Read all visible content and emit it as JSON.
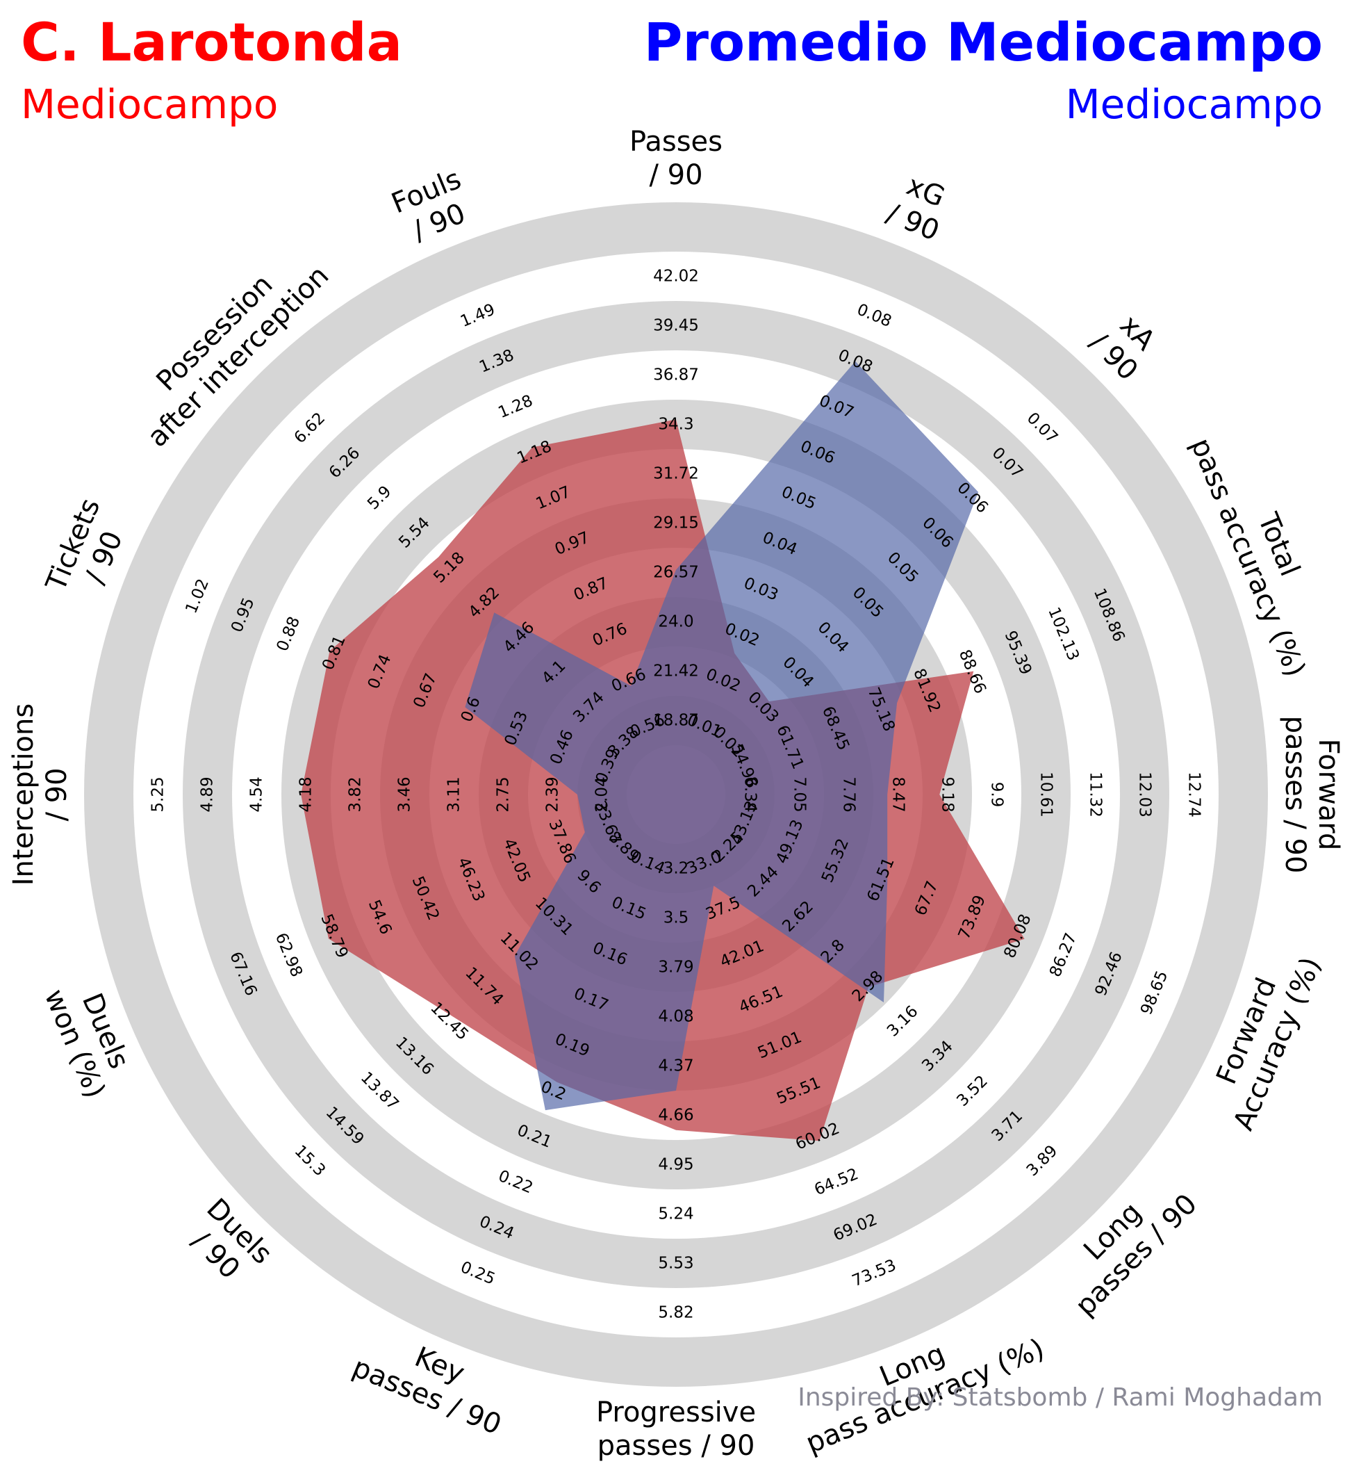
{
  "header": {
    "player_name": "C. Larotonda",
    "player_position": "Mediocampo",
    "comparison_name": "Promedio Mediocampo",
    "comparison_position": "Mediocampo",
    "credit": "Inspired By: Statsbomb / Rami Moghadam"
  },
  "colors": {
    "player_text": "#ff0000",
    "comparison_text": "#0000ff",
    "player_fill": "#c0474d",
    "comparison_fill": "#5366a6",
    "ring": "#d6d6d6",
    "credit": "#8a8a96"
  },
  "chart_data": {
    "type": "radar",
    "title": "",
    "ring_count": 12,
    "parameters": [
      {
        "label": [
          "Passes",
          "/ 90"
        ],
        "min": 16.29,
        "max": 42.02,
        "ticks": [
          "",
          "18.87",
          "21.42",
          "24.0",
          "26.57",
          "29.15",
          "31.72",
          "34.3",
          "36.87",
          "39.45",
          "42.02"
        ]
      },
      {
        "label": [
          "xG",
          "/ 90"
        ],
        "min": 0.0,
        "max": 0.08,
        "ticks": [
          "",
          "0.01",
          "0.02",
          "0.02",
          "0.03",
          "0.04",
          "0.05",
          "0.06",
          "0.07",
          "0.08",
          "0.08"
        ]
      },
      {
        "label": [
          "xA",
          "/ 90"
        ],
        "min": 0.01,
        "max": 0.07,
        "ticks": [
          "",
          "0.02",
          "0.03",
          "0.04",
          "0.04",
          "0.05",
          "0.05",
          "0.06",
          "0.06",
          "0.07",
          "0.07"
        ]
      },
      {
        "label": [
          "Total",
          "pass accuracy (%)"
        ],
        "min": 46.94,
        "max": 108.86,
        "ticks": [
          "",
          "54.98",
          "61.71",
          "68.45",
          "75.18",
          "81.92",
          "88.66",
          "95.39",
          "102.13",
          "108.86",
          ""
        ]
      },
      {
        "label": [
          "Forward",
          "passes / 90"
        ],
        "min": 5.63,
        "max": 12.74,
        "ticks": [
          "",
          "6.34",
          "7.05",
          "7.76",
          "8.47",
          "9.18",
          "9.9",
          "10.61",
          "11.32",
          "12.03",
          "12.74"
        ]
      },
      {
        "label": [
          "Forward",
          "Accuracy (%)"
        ],
        "min": 36.96,
        "max": 98.65,
        "ticks": [
          "",
          "43.13",
          "49.13",
          "55.32",
          "61.51",
          "67.7",
          "73.89",
          "80.08",
          "86.27",
          "92.46",
          "98.65"
        ]
      },
      {
        "label": [
          "Long",
          "passes / 90"
        ],
        "min": 2.07,
        "max": 3.89,
        "ticks": [
          "",
          "2.25",
          "2.44",
          "2.62",
          "2.8",
          "2.98",
          "3.16",
          "3.34",
          "3.52",
          "3.71",
          "3.89"
        ]
      },
      {
        "label": [
          "Long",
          "pass accuracy (%)"
        ],
        "min": 28.5,
        "max": 73.53,
        "ticks": [
          "",
          "33.0",
          "37.5",
          "42.01",
          "46.51",
          "51.01",
          "55.51",
          "60.02",
          "64.52",
          "69.02",
          "73.53"
        ]
      },
      {
        "label": [
          "Progressive",
          "passes / 90"
        ],
        "min": 2.92,
        "max": 5.82,
        "ticks": [
          "",
          "3.2",
          "3.5",
          "3.79",
          "4.08",
          "4.37",
          "4.66",
          "4.95",
          "5.24",
          "5.53",
          "5.82"
        ]
      },
      {
        "label": [
          "Key",
          "passes / 90"
        ],
        "min": 0.12,
        "max": 0.25,
        "ticks": [
          "",
          "0.14",
          "0.15",
          "0.16",
          "0.17",
          "0.19",
          "0.2",
          "0.21",
          "0.22",
          "0.24",
          "0.25"
        ]
      },
      {
        "label": [
          "Duels",
          "/ 90"
        ],
        "min": 8.9,
        "max": 15.3,
        "ticks": [
          "",
          "8.89",
          "9.6",
          "10.31",
          "11.02",
          "11.74",
          "12.45",
          "13.16",
          "13.87",
          "14.59",
          "15.3"
        ]
      },
      {
        "label": [
          "Duels",
          "won (%)"
        ],
        "min": 29.55,
        "max": 67.16,
        "ticks": [
          "",
          "33.67",
          "37.86",
          "42.05",
          "46.23",
          "50.42",
          "54.6",
          "58.79",
          "62.98",
          "67.16",
          ""
        ]
      },
      {
        "label": [
          "Interceptions",
          "/ 90"
        ],
        "min": 1.68,
        "max": 5.25,
        "ticks": [
          "",
          "2.04",
          "2.39",
          "2.75",
          "3.11",
          "3.46",
          "3.82",
          "4.18",
          "4.54",
          "4.89",
          "5.25"
        ]
      },
      {
        "label": [
          "Tickets",
          "/ 90"
        ],
        "min": 0.32,
        "max": 1.02,
        "ticks": [
          "",
          "0.39",
          "0.46",
          "0.53",
          "0.6",
          "0.67",
          "0.74",
          "0.81",
          "0.88",
          "0.95",
          "1.02"
        ]
      },
      {
        "label": [
          "Possession",
          "after interception"
        ],
        "min": 3.01,
        "max": 6.62,
        "ticks": [
          "",
          "3.38",
          "3.74",
          "4.1",
          "4.46",
          "4.82",
          "5.18",
          "5.54",
          "5.9",
          "6.26",
          "6.62"
        ]
      },
      {
        "label": [
          "Fouls",
          "/ 90"
        ],
        "min": 0.45,
        "max": 1.49,
        "ticks": [
          "",
          "0.56",
          "0.66",
          "0.76",
          "0.87",
          "0.97",
          "1.07",
          "1.18",
          "1.28",
          "1.38",
          "1.49"
        ]
      }
    ],
    "series": [
      {
        "name": "C. Larotonda",
        "values": [
          34.3,
          0.011,
          0.015,
          82.0,
          8.6,
          80.5,
          2.87,
          60.0,
          4.66,
          0.19,
          12.4,
          56.0,
          4.18,
          0.81,
          5.18,
          1.18
        ]
      },
      {
        "name": "Promedio Mediocampo",
        "values": [
          24.5,
          0.075,
          0.06,
          69.0,
          7.66,
          57.3,
          2.97,
          28.5,
          4.37,
          0.2,
          11.0,
          27.0,
          1.6,
          0.55,
          4.46,
          0.5
        ]
      }
    ]
  }
}
